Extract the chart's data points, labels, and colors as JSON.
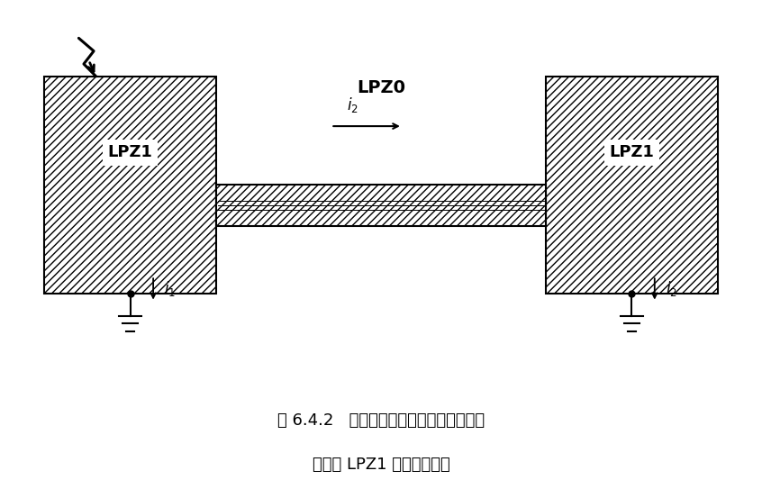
{
  "title_line1": "图 6.4.2   用屏蔽电缆或穿钔管线路将两棋",
  "title_line2": "独立的 LPZ1 区连接在一起",
  "lpz0_label": "LPZ0",
  "lpz1_label": "LPZ1",
  "bg_color": "#ffffff",
  "box_color": "#000000"
}
